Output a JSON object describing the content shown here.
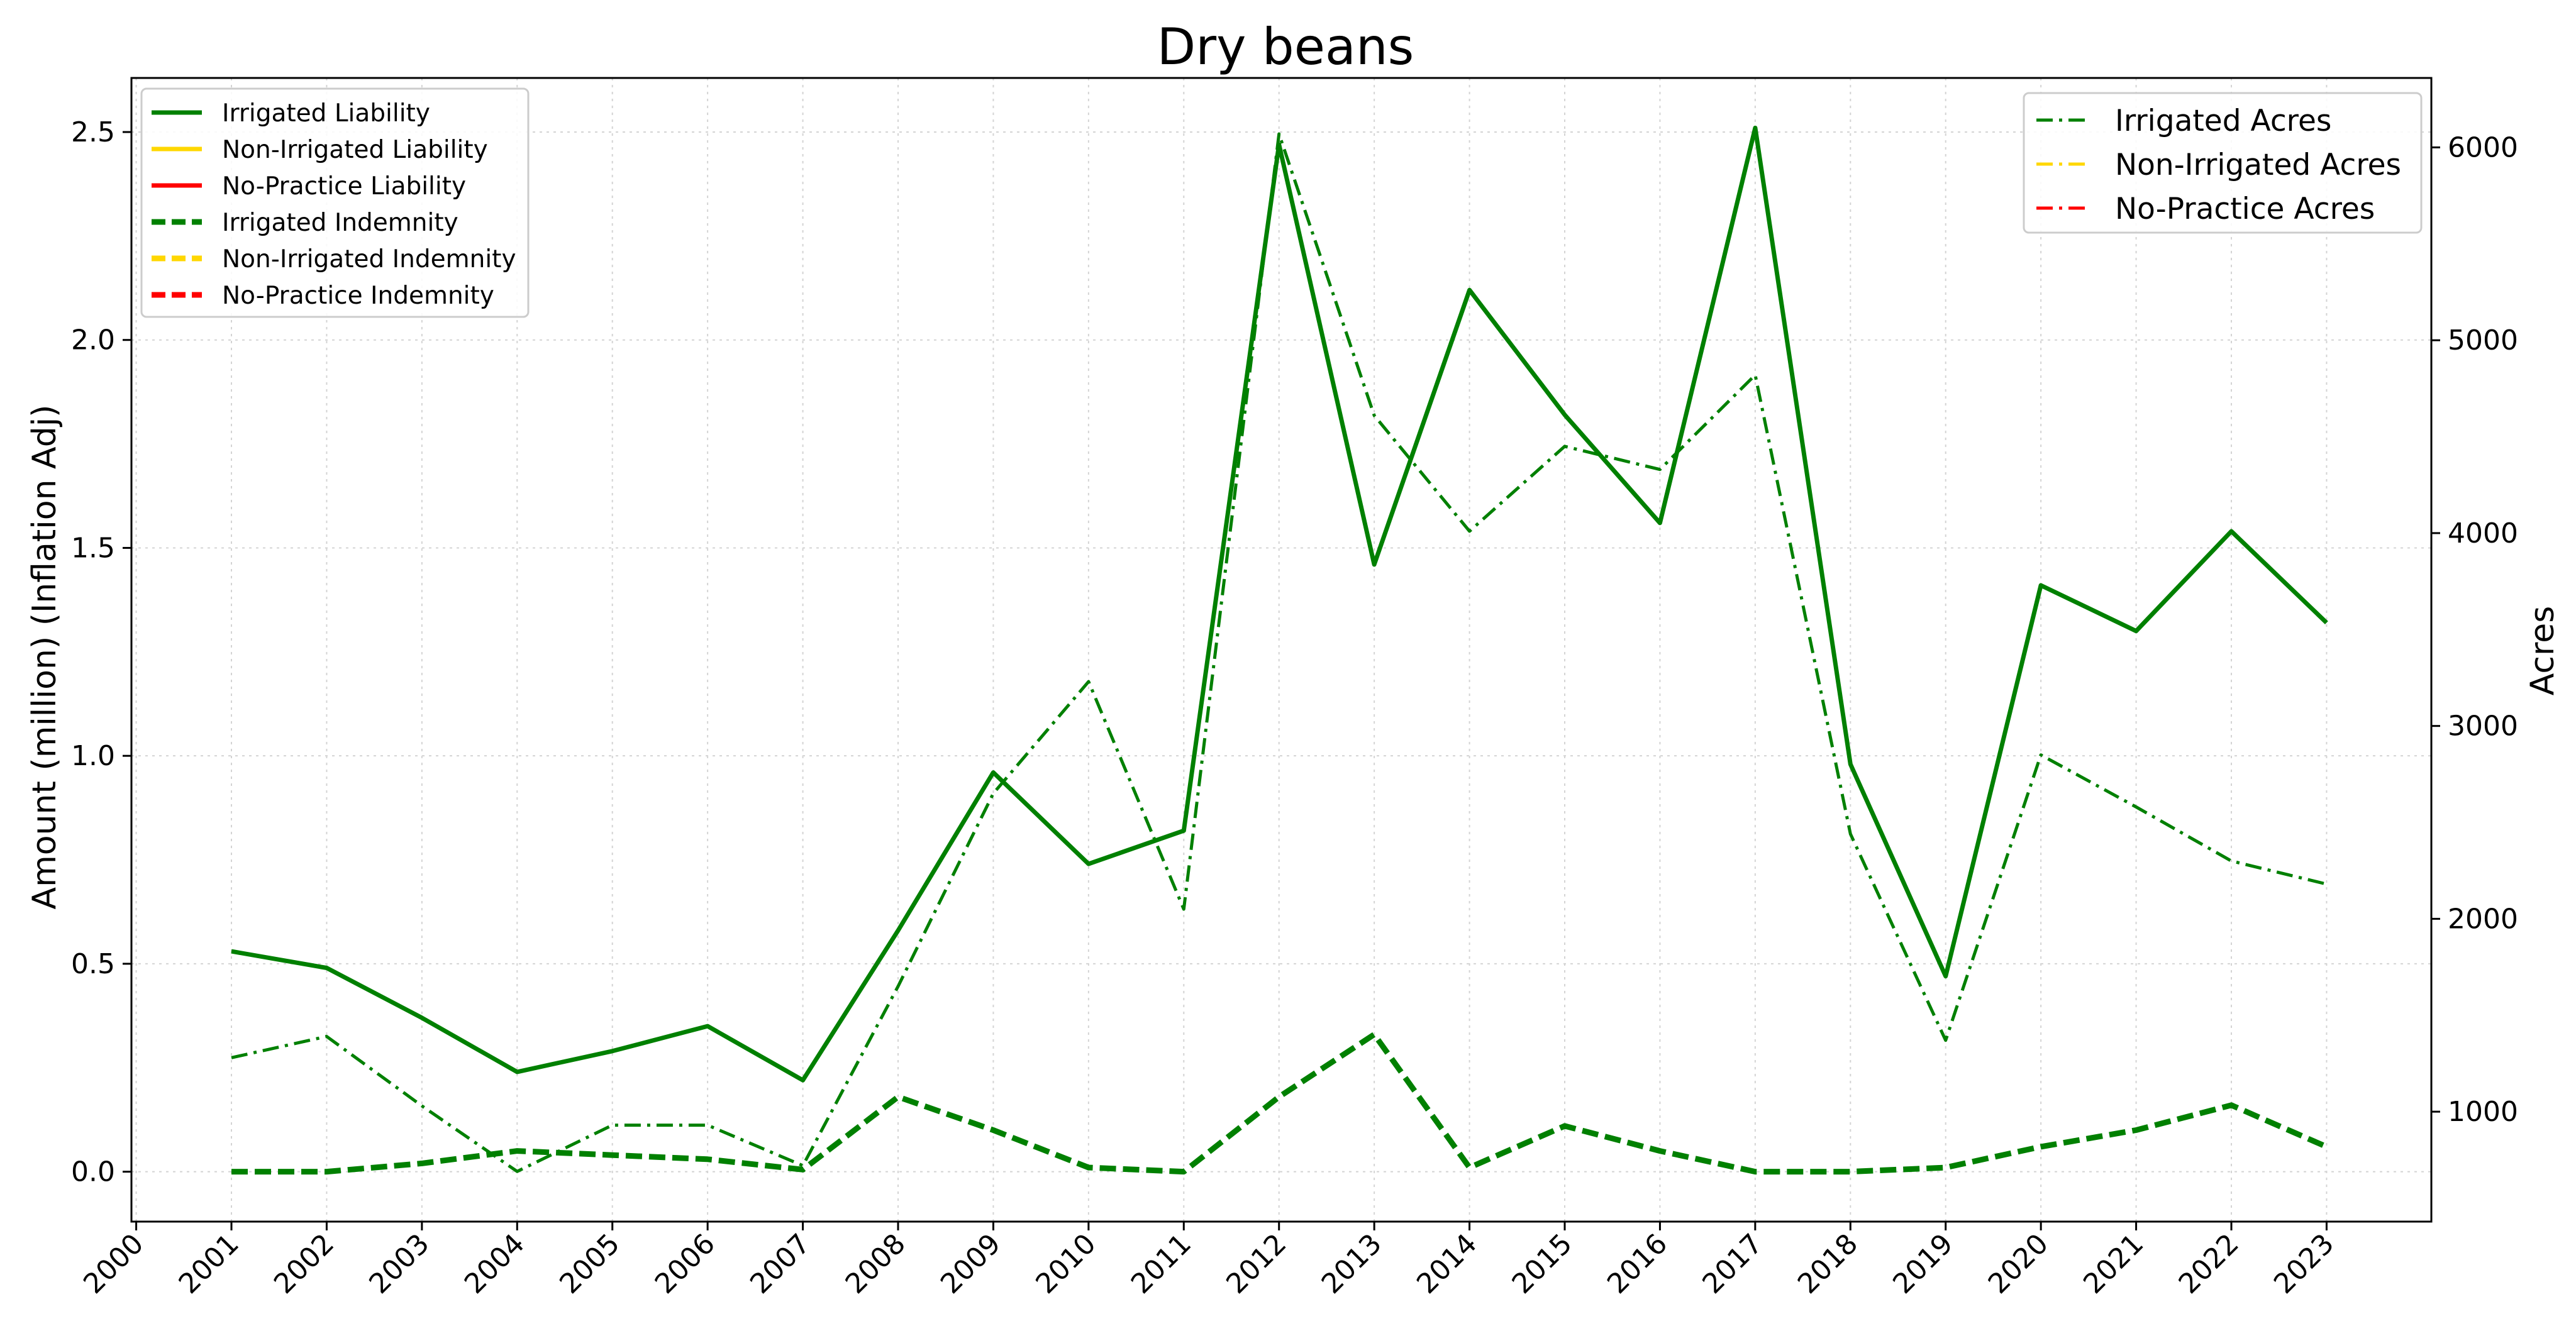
{
  "chart_data": {
    "type": "line",
    "title": "Dry beans",
    "ylabel": "Amount (million) (Inflation Adj)",
    "y2label": "Acres",
    "xlim": [
      1999.95,
      2024.1
    ],
    "ylim": [
      -0.12,
      2.63
    ],
    "y2lim": [
      430,
      6360
    ],
    "x_ticks": [
      "2000",
      "2001",
      "2002",
      "2003",
      "2004",
      "2005",
      "2006",
      "2007",
      "2008",
      "2009",
      "2010",
      "2011",
      "2012",
      "2013",
      "2014",
      "2015",
      "2016",
      "2017",
      "2018",
      "2019",
      "2020",
      "2021",
      "2022",
      "2023"
    ],
    "y_ticks": [
      "0.0",
      "0.5",
      "1.0",
      "1.5",
      "2.0",
      "2.5"
    ],
    "y2_ticks": [
      "1000",
      "2000",
      "3000",
      "4000",
      "5000",
      "6000"
    ],
    "grid": true,
    "legend_left_position": "top-left",
    "legend_right_position": "top-right",
    "colors": {
      "irrigated": "#008000",
      "non_irrigated": "#FFD700",
      "no_practice": "#FF0000"
    },
    "series_left": [
      {
        "name": "Irrigated Liability",
        "style": "solid",
        "color": "#008000",
        "values": []
      },
      {
        "name": "Non-Irrigated Liability",
        "style": "solid",
        "color": "#FFD700",
        "values": []
      },
      {
        "name": "No-Practice Liability",
        "style": "solid",
        "color": "#FF0000",
        "values": []
      },
      {
        "name": "Irrigated Indemnity",
        "style": "dashed",
        "color": "#008000",
        "values": []
      },
      {
        "name": "Non-Irrigated Indemnity",
        "style": "dashed",
        "color": "#FFD700",
        "values": []
      },
      {
        "name": "No-Practice Indemnity",
        "style": "dashed",
        "color": "#FF0000",
        "values": []
      }
    ],
    "series_right": [
      {
        "name": "Irrigated Acres",
        "style": "dashdot",
        "color": "#008000",
        "values": []
      },
      {
        "name": "Non-Irrigated Acres",
        "style": "dashdot",
        "color": "#FFD700",
        "values": []
      },
      {
        "name": "No-Practice Acres",
        "style": "dashdot",
        "color": "#FF0000",
        "values": []
      }
    ],
    "data": {
      "years": [
        2001,
        2002,
        2003,
        2004,
        2005,
        2006,
        2007,
        2008,
        2009,
        2010,
        2011,
        2012,
        2013,
        2014,
        2015,
        2016,
        2017,
        2018,
        2019,
        2020,
        2021,
        2022,
        2023
      ],
      "irrigated_liability": [
        0.53,
        0.49,
        0.37,
        0.24,
        0.29,
        0.35,
        0.22,
        0.58,
        0.96,
        0.74,
        0.82,
        2.47,
        1.46,
        2.12,
        1.82,
        1.56,
        2.51,
        0.98,
        0.47,
        1.41,
        1.3,
        1.54,
        1.32
      ],
      "irrigated_indemnity": [
        0.0,
        0.0,
        0.02,
        0.05,
        0.04,
        0.03,
        0.005,
        0.18,
        0.1,
        0.01,
        0.0,
        0.18,
        0.33,
        0.01,
        0.11,
        0.05,
        0.0,
        0.0,
        0.01,
        0.06,
        0.1,
        0.16,
        0.06
      ],
      "irrigated_acres": [
        1280,
        1390,
        1030,
        690,
        930,
        930,
        720,
        1650,
        2650,
        3230,
        2050,
        6070,
        4610,
        4010,
        4450,
        4330,
        4820,
        2440,
        1370,
        2850,
        2580,
        2300,
        2180
      ]
    }
  }
}
